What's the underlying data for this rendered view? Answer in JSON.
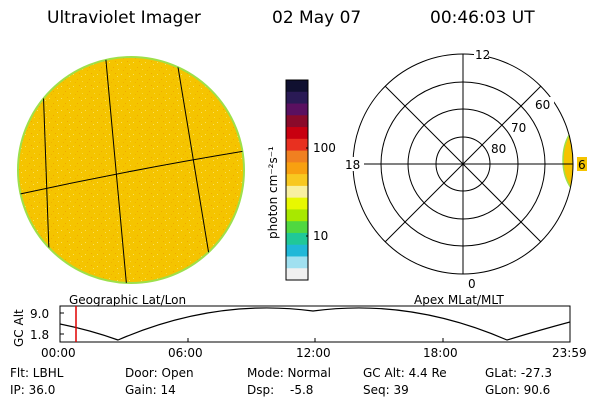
{
  "header": {
    "title": "Ultraviolet Imager",
    "date": "02 May 07",
    "time": "00:46:03 UT"
  },
  "colorbar": {
    "unit_label": "photon cm⁻²s⁻¹",
    "ticks": [
      "100",
      "10"
    ],
    "colors_top_to_bottom": [
      "#101030",
      "#2a1a55",
      "#5a1060",
      "#8a0a2a",
      "#c80010",
      "#e83020",
      "#f08020",
      "#f8a010",
      "#f8c820",
      "#f8f0a0",
      "#e8f800",
      "#a8e800",
      "#50d840",
      "#20c898",
      "#20b8d8",
      "#a0e0f0",
      "#f0f0f0"
    ]
  },
  "geo_panel": {
    "label": "Geographic Lat/Lon",
    "fill_color": "#f5c400",
    "rim_color": "#9ee04a"
  },
  "polar_panel": {
    "label": "Apex MLat/MLT",
    "mlt_labels": {
      "top": "12",
      "left": "18",
      "bottom": "0",
      "right": "6"
    },
    "mlat_labels": [
      "60",
      "70",
      "80"
    ]
  },
  "gc_alt_plot": {
    "ylabel": "GC Alt",
    "y_ticks": [
      "9.0",
      "1.8"
    ],
    "x_ticks": [
      "00:00",
      "06:00",
      "12:00",
      "18:00",
      "23:59"
    ],
    "marker_color": "#e00000"
  },
  "footer": {
    "flt": "Flt: LBHL",
    "ip": "IP: 36.0",
    "door": "Door: Open",
    "gain": "Gain: 14",
    "mode": "Mode: Normal",
    "dsp_label": "Dsp:",
    "dsp_value": "-5.8",
    "gcalt": "GC Alt: 4.4 Re",
    "seq": "Seq: 39",
    "glat": "GLat: -27.3",
    "glon": "GLon:  90.6"
  }
}
